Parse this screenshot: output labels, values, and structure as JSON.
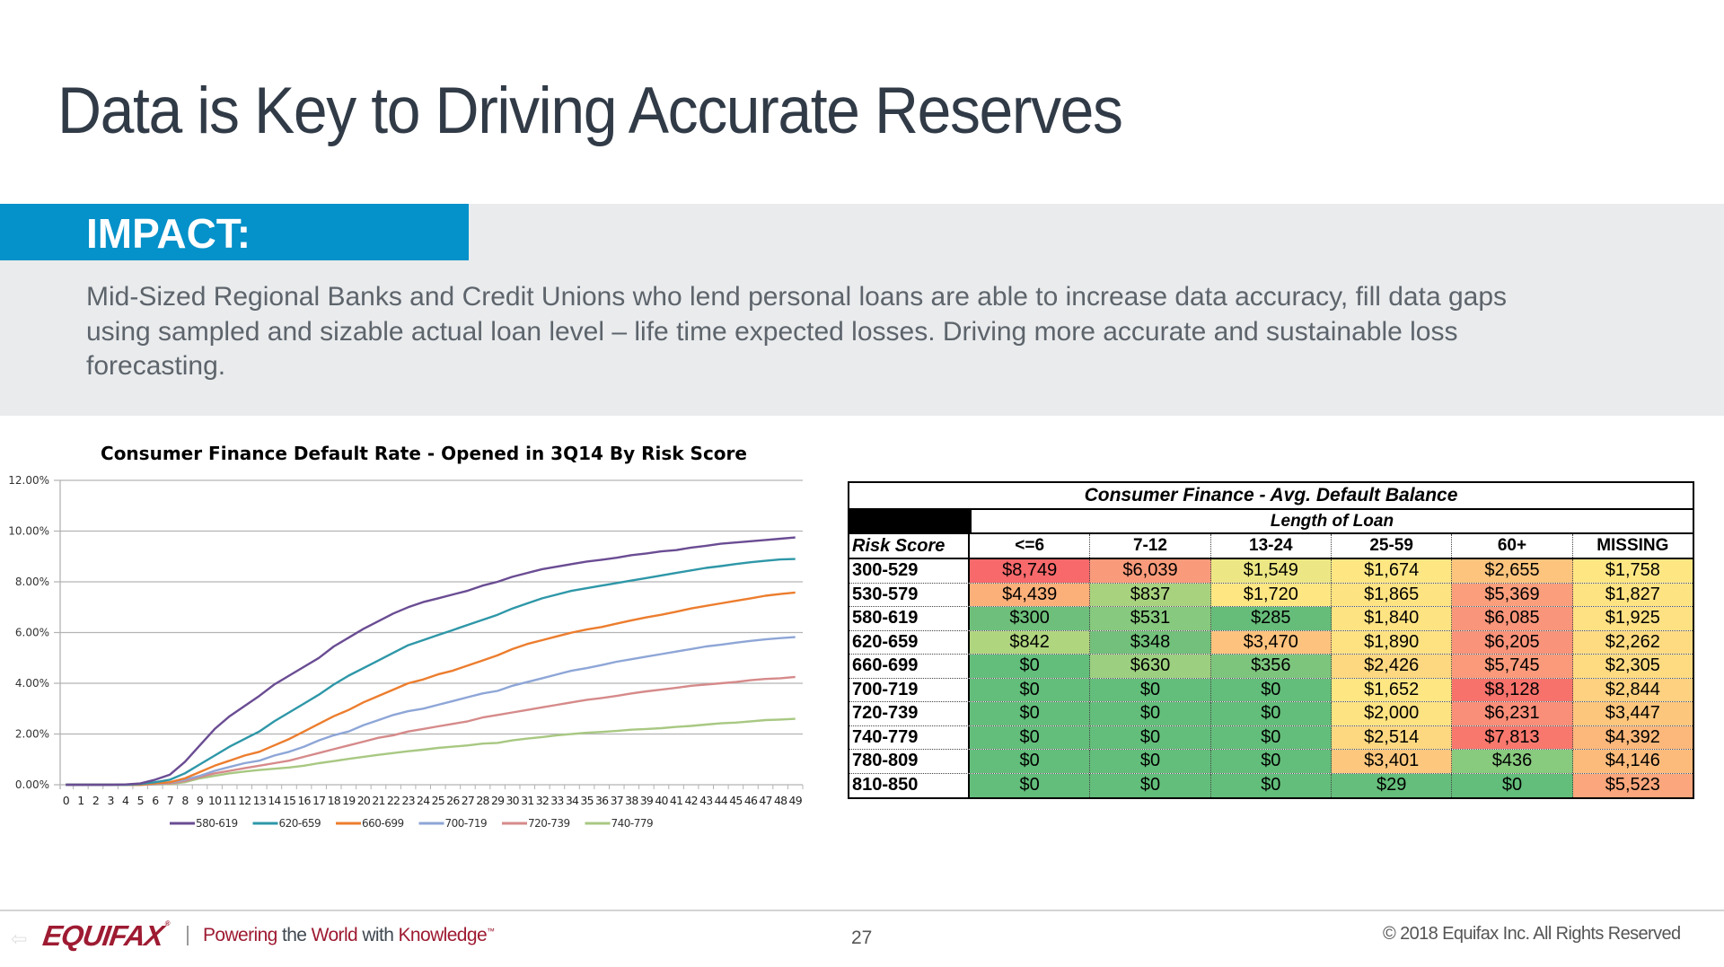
{
  "header": {
    "title": "Data is Key to Driving Accurate Reserves"
  },
  "impact": {
    "label": "IMPACT:",
    "lines": [
      "Mid-Sized Regional Banks and Credit Unions who lend personal loans are able to increase data accuracy, fill data gaps",
      "using sampled and sizable actual loan level – life time expected  losses.  Driving more accurate and sustainable loss",
      "forecasting."
    ]
  },
  "chart_data": {
    "type": "line",
    "title": "Consumer Finance Default Rate - Opened in 3Q14 By Risk Score",
    "xlabel": "",
    "ylabel": "",
    "ylim": [
      0,
      12
    ],
    "yticks": [
      "0.00%",
      "2.00%",
      "4.00%",
      "6.00%",
      "8.00%",
      "10.00%",
      "12.00%"
    ],
    "ytick_values": [
      0,
      2,
      4,
      6,
      8,
      10,
      12
    ],
    "x": [
      0,
      1,
      2,
      3,
      4,
      5,
      6,
      7,
      8,
      9,
      10,
      11,
      12,
      13,
      14,
      15,
      16,
      17,
      18,
      19,
      20,
      21,
      22,
      23,
      24,
      25,
      26,
      27,
      28,
      29,
      30,
      31,
      32,
      33,
      34,
      35,
      36,
      37,
      38,
      39,
      40,
      41,
      42,
      43,
      44,
      45,
      46,
      47,
      48,
      49
    ],
    "grid": true,
    "legend": "bottom",
    "series": [
      {
        "name": "580-619",
        "color": "#6a4c93",
        "values": [
          0,
          0,
          0,
          0,
          0.01,
          0.05,
          0.2,
          0.4,
          0.9,
          1.55,
          2.2,
          2.7,
          3.1,
          3.5,
          3.95,
          4.3,
          4.65,
          5.0,
          5.45,
          5.8,
          6.15,
          6.45,
          6.75,
          7.0,
          7.2,
          7.35,
          7.5,
          7.65,
          7.85,
          8.0,
          8.2,
          8.35,
          8.5,
          8.6,
          8.7,
          8.8,
          8.87,
          8.95,
          9.05,
          9.12,
          9.2,
          9.25,
          9.35,
          9.42,
          9.5,
          9.55,
          9.6,
          9.65,
          9.7,
          9.75
        ]
      },
      {
        "name": "620-659",
        "color": "#2e97a8",
        "values": [
          0,
          0,
          0,
          0,
          0,
          0.03,
          0.1,
          0.2,
          0.45,
          0.8,
          1.15,
          1.5,
          1.8,
          2.1,
          2.5,
          2.85,
          3.2,
          3.55,
          3.95,
          4.3,
          4.6,
          4.9,
          5.2,
          5.5,
          5.7,
          5.9,
          6.1,
          6.3,
          6.5,
          6.7,
          6.95,
          7.15,
          7.35,
          7.5,
          7.65,
          7.75,
          7.85,
          7.95,
          8.05,
          8.15,
          8.25,
          8.35,
          8.45,
          8.55,
          8.62,
          8.7,
          8.77,
          8.83,
          8.88,
          8.9
        ]
      },
      {
        "name": "660-699",
        "color": "#ec7d2e",
        "values": [
          0,
          0,
          0,
          0,
          0,
          0,
          0.05,
          0.1,
          0.25,
          0.5,
          0.75,
          0.95,
          1.15,
          1.3,
          1.55,
          1.8,
          2.1,
          2.4,
          2.7,
          2.95,
          3.25,
          3.5,
          3.75,
          4.0,
          4.15,
          4.35,
          4.5,
          4.7,
          4.9,
          5.1,
          5.35,
          5.55,
          5.7,
          5.85,
          6.0,
          6.12,
          6.22,
          6.35,
          6.48,
          6.6,
          6.7,
          6.82,
          6.95,
          7.05,
          7.15,
          7.25,
          7.35,
          7.45,
          7.52,
          7.58
        ]
      },
      {
        "name": "700-719",
        "color": "#8ea6d7",
        "values": [
          0,
          0,
          0,
          0,
          0,
          0,
          0.03,
          0.08,
          0.2,
          0.35,
          0.55,
          0.7,
          0.85,
          0.95,
          1.15,
          1.3,
          1.5,
          1.75,
          1.95,
          2.1,
          2.35,
          2.55,
          2.75,
          2.9,
          3.0,
          3.15,
          3.3,
          3.45,
          3.6,
          3.7,
          3.9,
          4.05,
          4.2,
          4.35,
          4.5,
          4.6,
          4.72,
          4.85,
          4.95,
          5.05,
          5.15,
          5.25,
          5.35,
          5.45,
          5.52,
          5.6,
          5.67,
          5.73,
          5.78,
          5.82
        ]
      },
      {
        "name": "720-739",
        "color": "#d68a8a",
        "values": [
          0,
          0,
          0,
          0,
          0,
          0,
          0.02,
          0.05,
          0.15,
          0.3,
          0.45,
          0.55,
          0.65,
          0.75,
          0.85,
          0.95,
          1.1,
          1.25,
          1.4,
          1.55,
          1.7,
          1.85,
          1.95,
          2.1,
          2.2,
          2.3,
          2.4,
          2.5,
          2.65,
          2.75,
          2.85,
          2.95,
          3.05,
          3.15,
          3.25,
          3.35,
          3.42,
          3.5,
          3.6,
          3.68,
          3.75,
          3.82,
          3.9,
          3.95,
          4.0,
          4.05,
          4.12,
          4.17,
          4.2,
          4.25
        ]
      },
      {
        "name": "740-779",
        "color": "#a8c882",
        "values": [
          0,
          0,
          0,
          0,
          0,
          0,
          0.01,
          0.03,
          0.1,
          0.25,
          0.35,
          0.45,
          0.52,
          0.58,
          0.63,
          0.68,
          0.75,
          0.85,
          0.93,
          1.02,
          1.1,
          1.18,
          1.25,
          1.32,
          1.38,
          1.45,
          1.5,
          1.55,
          1.62,
          1.65,
          1.75,
          1.82,
          1.88,
          1.95,
          2.0,
          2.05,
          2.08,
          2.12,
          2.17,
          2.2,
          2.23,
          2.28,
          2.32,
          2.37,
          2.42,
          2.45,
          2.5,
          2.55,
          2.57,
          2.6
        ]
      }
    ]
  },
  "table": {
    "title": "Consumer Finance - Avg. Default Balance",
    "subheader": "Length of Loan",
    "row_header": "Risk Score",
    "columns": [
      "<=6",
      "7-12",
      "13-24",
      "25-59",
      "60+",
      "MISSING"
    ],
    "rows": [
      {
        "label": "300-529",
        "values": [
          "$8,749",
          "$6,039",
          "$1,549",
          "$1,674",
          "$2,655",
          "$1,758"
        ],
        "colors": [
          "#f8696b",
          "#f99b7b",
          "#ece784",
          "#fee783",
          "#fcc47d",
          "#fee783"
        ]
      },
      {
        "label": "530-579",
        "values": [
          "$4,439",
          "$837",
          "$1,720",
          "$1,865",
          "$5,369",
          "$1,827"
        ],
        "colors": [
          "#fbb07a",
          "#a9d27f",
          "#fee783",
          "#fee382",
          "#fa9e7c",
          "#fee382"
        ]
      },
      {
        "label": "580-619",
        "values": [
          "$300",
          "$531",
          "$285",
          "$1,840",
          "$6,085",
          "$1,925"
        ],
        "colors": [
          "#6dbf7b",
          "#87c97e",
          "#66bd7a",
          "#fee382",
          "#f9957a",
          "#fee182"
        ]
      },
      {
        "label": "620-659",
        "values": [
          "$842",
          "$348",
          "$3,470",
          "$1,890",
          "$6,205",
          "$2,262"
        ],
        "colors": [
          "#b0d57f",
          "#72c07b",
          "#fdc27d",
          "#fee282",
          "#f9937a",
          "#fedb81"
        ]
      },
      {
        "label": "660-699",
        "values": [
          "$0",
          "$630",
          "$356",
          "$2,426",
          "$5,745",
          "$2,305"
        ],
        "colors": [
          "#63be7b",
          "#9ccf7f",
          "#7dc57d",
          "#fed880",
          "#fa9a7b",
          "#fedb81"
        ]
      },
      {
        "label": "700-719",
        "values": [
          "$0",
          "$0",
          "$0",
          "$1,652",
          "$8,128",
          "$2,844"
        ],
        "colors": [
          "#63be7b",
          "#63be7b",
          "#63be7b",
          "#fee783",
          "#f8726c",
          "#fdd17f"
        ]
      },
      {
        "label": "720-739",
        "values": [
          "$0",
          "$0",
          "$0",
          "$2,000",
          "$6,231",
          "$3,447"
        ],
        "colors": [
          "#63be7b",
          "#63be7b",
          "#63be7b",
          "#fee382",
          "#f98e79",
          "#fdc67d"
        ]
      },
      {
        "label": "740-779",
        "values": [
          "$0",
          "$0",
          "$0",
          "$2,514",
          "$7,813",
          "$4,392"
        ],
        "colors": [
          "#63be7b",
          "#63be7b",
          "#63be7b",
          "#fed880",
          "#f8786d",
          "#fcb77a"
        ]
      },
      {
        "label": "780-809",
        "values": [
          "$0",
          "$0",
          "$0",
          "$3,401",
          "$436",
          "$4,146"
        ],
        "colors": [
          "#63be7b",
          "#63be7b",
          "#63be7b",
          "#fdc77d",
          "#88ca7e",
          "#fcbb7b"
        ]
      },
      {
        "label": "810-850",
        "values": [
          "$0",
          "$0",
          "$0",
          "$29",
          "$0",
          "$5,523"
        ],
        "colors": [
          "#63be7b",
          "#63be7b",
          "#63be7b",
          "#65be7b",
          "#63be7b",
          "#fba67c"
        ]
      }
    ]
  },
  "footer": {
    "logo": "EQUIFAX",
    "tagline_parts": [
      "Powering ",
      "the ",
      "World ",
      "with ",
      "Knowledge"
    ],
    "trademark": "™",
    "page_number": "27",
    "copyright": "© 2018 Equifax Inc. All Rights Reserved"
  }
}
